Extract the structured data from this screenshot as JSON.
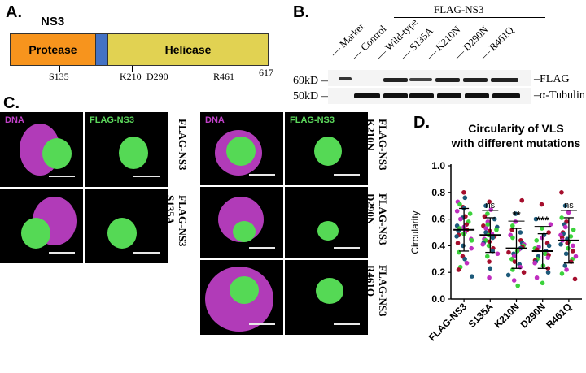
{
  "panel_a": {
    "letter": "A.",
    "protein": "NS3",
    "protease": "Protease",
    "helicase": "Helicase",
    "sites": [
      "S135",
      "K210",
      "D290",
      "R461"
    ],
    "end": "617",
    "colors": {
      "protease": "#f7941d",
      "linker": "#4472c4",
      "helicase": "#e1d252"
    }
  },
  "panel_b": {
    "letter": "B.",
    "group": "FLAG-NS3",
    "lanes": [
      "Marker",
      "Control",
      "Wild-type",
      "S135A",
      "K210N",
      "D290N",
      "R461Q"
    ],
    "mw": [
      "69kD",
      "50kD"
    ],
    "bands": [
      "FLAG",
      "α-Tubulin"
    ]
  },
  "panel_c": {
    "letter": "C.",
    "channel_dna": "DNA",
    "channel_flag": "FLAG-NS3",
    "rows_left": [
      {
        "label_1": "FLAG-NS3",
        "label_2": ""
      },
      {
        "label_1": "FLAG-NS3",
        "label_2": "S135A"
      }
    ],
    "rows_right": [
      {
        "label_1": "FLAG-NS3",
        "label_2": "K210N"
      },
      {
        "label_1": "FLAG-NS3",
        "label_2": "D290N"
      },
      {
        "label_1": "FLAG-NS3",
        "label_2": "R461Q"
      }
    ],
    "colors": {
      "dna": "#c040c8",
      "flag": "#5cd85c"
    }
  },
  "panel_d": {
    "letter": "D.",
    "title_line1": "Circularity of VLS",
    "title_line2": "with different mutations"
  },
  "chart_data": {
    "type": "scatter",
    "title": "Circularity of VLS with different mutations",
    "ylabel": "Circularity",
    "categories": [
      "FLAG-NS3",
      "S135A",
      "K210N",
      "D290N",
      "R461Q"
    ],
    "ylim": [
      0.0,
      1.0
    ],
    "yticks": [
      "0.0",
      "0.2",
      "0.4",
      "0.6",
      "0.8",
      "1.0"
    ],
    "means": [
      0.52,
      0.48,
      0.38,
      0.36,
      0.44
    ],
    "sd": [
      0.16,
      0.13,
      0.15,
      0.13,
      0.17
    ],
    "significance": [
      "",
      "ns",
      "**",
      "***",
      "ns"
    ],
    "point_colors": [
      "#a50e2d",
      "#1d5a7a",
      "#c02ec0",
      "#3bd23b"
    ],
    "points": [
      [
        0.8,
        0.76,
        0.73,
        0.71,
        0.69,
        0.68,
        0.66,
        0.64,
        0.62,
        0.61,
        0.6,
        0.58,
        0.56,
        0.55,
        0.54,
        0.53,
        0.52,
        0.51,
        0.5,
        0.49,
        0.48,
        0.47,
        0.45,
        0.44,
        0.42,
        0.4,
        0.38,
        0.35,
        0.32,
        0.3,
        0.27,
        0.24,
        0.22,
        0.17
      ],
      [
        0.73,
        0.7,
        0.67,
        0.64,
        0.62,
        0.6,
        0.58,
        0.56,
        0.55,
        0.54,
        0.53,
        0.52,
        0.51,
        0.5,
        0.49,
        0.48,
        0.47,
        0.46,
        0.45,
        0.44,
        0.43,
        0.42,
        0.41,
        0.4,
        0.38,
        0.36,
        0.34,
        0.32,
        0.28,
        0.23,
        0.16
      ],
      [
        0.74,
        0.64,
        0.58,
        0.55,
        0.52,
        0.5,
        0.48,
        0.46,
        0.44,
        0.42,
        0.41,
        0.4,
        0.39,
        0.38,
        0.37,
        0.36,
        0.35,
        0.34,
        0.32,
        0.3,
        0.28,
        0.26,
        0.24,
        0.22,
        0.2,
        0.18,
        0.14,
        0.1
      ],
      [
        0.71,
        0.6,
        0.56,
        0.53,
        0.5,
        0.48,
        0.46,
        0.44,
        0.42,
        0.4,
        0.39,
        0.38,
        0.37,
        0.36,
        0.35,
        0.34,
        0.33,
        0.32,
        0.31,
        0.3,
        0.29,
        0.28,
        0.27,
        0.25,
        0.23,
        0.2,
        0.16,
        0.12
      ],
      [
        0.8,
        0.7,
        0.65,
        0.61,
        0.58,
        0.56,
        0.54,
        0.52,
        0.5,
        0.49,
        0.48,
        0.47,
        0.46,
        0.45,
        0.44,
        0.43,
        0.42,
        0.41,
        0.4,
        0.38,
        0.36,
        0.34,
        0.32,
        0.3,
        0.28,
        0.25,
        0.22,
        0.19,
        0.15
      ]
    ]
  }
}
